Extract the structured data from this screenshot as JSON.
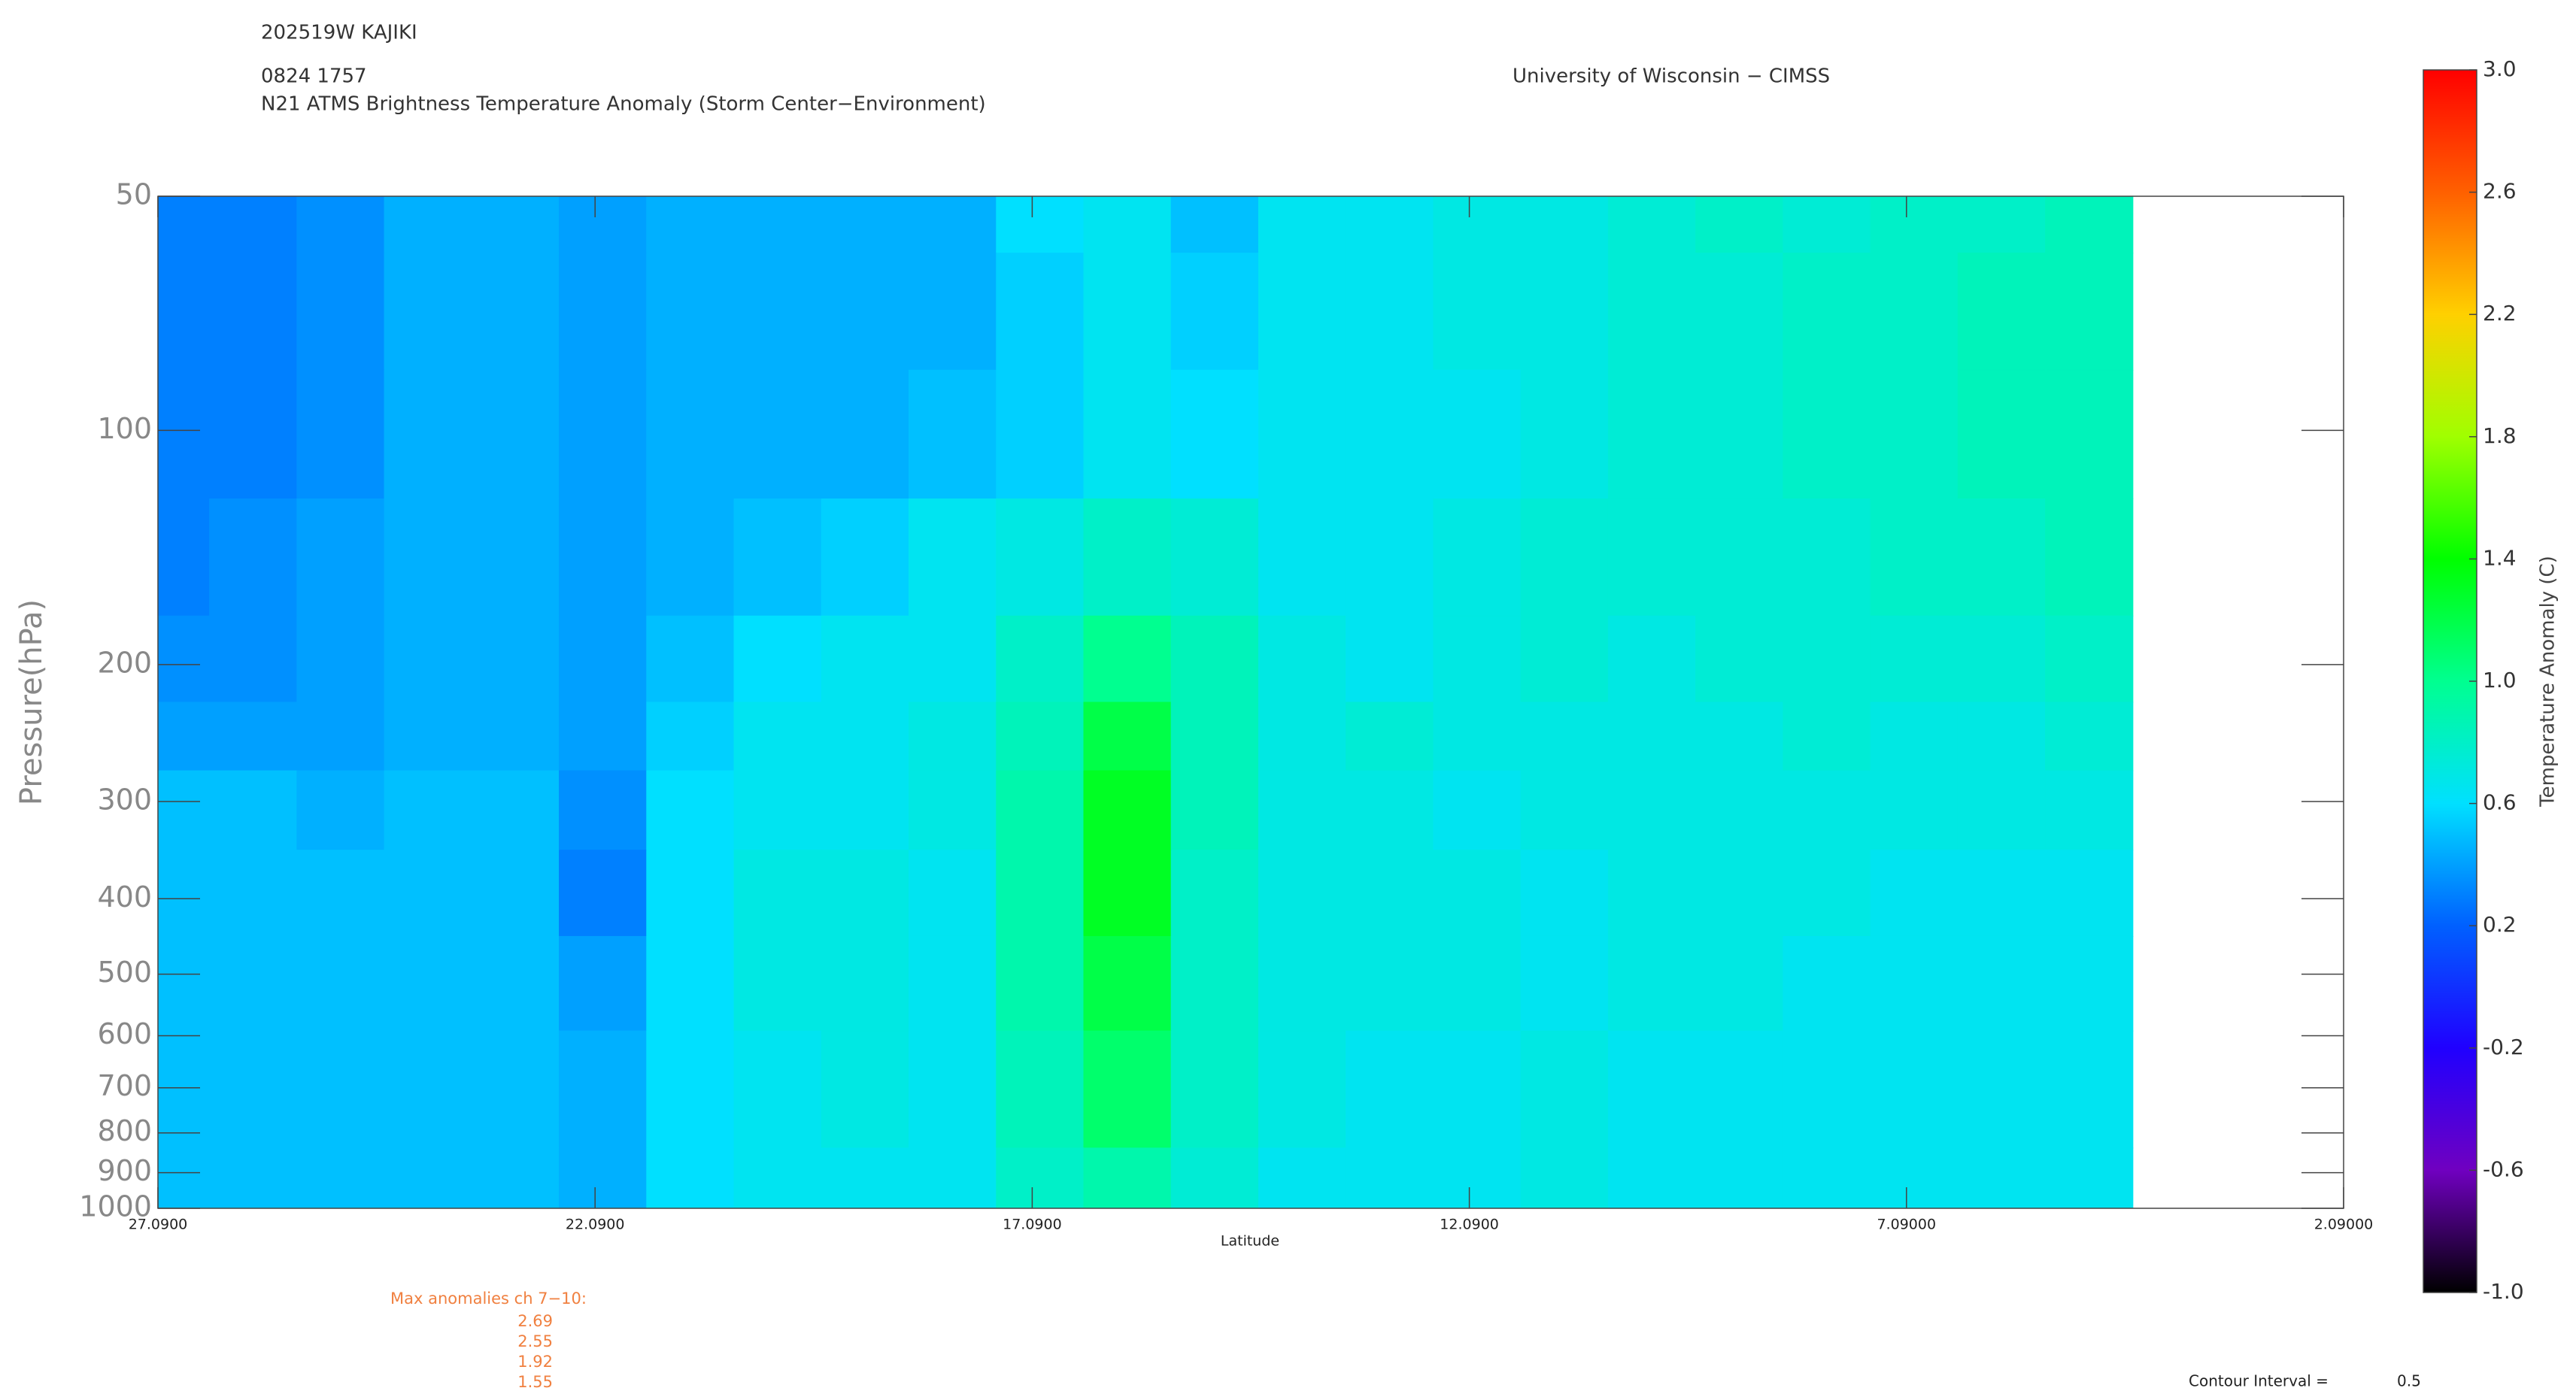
{
  "chart_data": {
    "type": "contour",
    "storm_id": "202519W KAJIKI",
    "datetime": "0824 1757",
    "title": "N21 ATMS Brightness Temperature Anomaly (Storm Center−Environment)",
    "credit": "University of Wisconsin − CIMSS",
    "xlabel": "Latitude",
    "ylabel": "Pressure(hPa)",
    "xlim": [
      27.09,
      2.09
    ],
    "xticks": [
      {
        "value": 27.09,
        "label": "27.0900"
      },
      {
        "value": 22.09,
        "label": "22.0900"
      },
      {
        "value": 17.09,
        "label": "17.0900"
      },
      {
        "value": 12.09,
        "label": "12.0900"
      },
      {
        "value": 7.09,
        "label": "7.09000"
      },
      {
        "value": 2.09,
        "label": "2.09000"
      }
    ],
    "ylim": [
      1000,
      50
    ],
    "yticks": [
      50,
      100,
      200,
      300,
      400,
      500,
      600,
      700,
      800,
      900,
      1000
    ],
    "log_y": true,
    "x": [
      27,
      26,
      25,
      24,
      23,
      22,
      21,
      20,
      19,
      18,
      17,
      16,
      15,
      14,
      13,
      12,
      11,
      10,
      9,
      8,
      7,
      6,
      5
    ],
    "y": [
      50,
      70,
      100,
      150,
      200,
      250,
      300,
      400,
      500,
      700,
      1000
    ],
    "z": [
      [
        0.3,
        0.3,
        0.35,
        0.45,
        0.45,
        0.4,
        0.45,
        0.45,
        0.45,
        0.45,
        0.6,
        0.65,
        0.5,
        0.65,
        0.65,
        0.7,
        0.7,
        0.75,
        0.8,
        0.75,
        0.8,
        0.8,
        0.85
      ],
      [
        0.3,
        0.3,
        0.35,
        0.45,
        0.45,
        0.4,
        0.45,
        0.45,
        0.45,
        0.45,
        0.55,
        0.65,
        0.55,
        0.65,
        0.65,
        0.7,
        0.7,
        0.75,
        0.75,
        0.8,
        0.8,
        0.85,
        0.85
      ],
      [
        0.3,
        0.3,
        0.35,
        0.45,
        0.45,
        0.4,
        0.45,
        0.45,
        0.45,
        0.5,
        0.55,
        0.65,
        0.6,
        0.65,
        0.65,
        0.65,
        0.7,
        0.75,
        0.75,
        0.8,
        0.8,
        0.85,
        0.85
      ],
      [
        0.3,
        0.35,
        0.4,
        0.45,
        0.45,
        0.4,
        0.45,
        0.5,
        0.55,
        0.65,
        0.7,
        0.8,
        0.75,
        0.65,
        0.65,
        0.7,
        0.75,
        0.75,
        0.75,
        0.75,
        0.8,
        0.8,
        0.85
      ],
      [
        0.35,
        0.35,
        0.4,
        0.45,
        0.45,
        0.4,
        0.5,
        0.6,
        0.65,
        0.65,
        0.8,
        1.0,
        0.85,
        0.7,
        0.65,
        0.7,
        0.75,
        0.7,
        0.75,
        0.75,
        0.75,
        0.75,
        0.8
      ],
      [
        0.4,
        0.4,
        0.4,
        0.45,
        0.45,
        0.4,
        0.55,
        0.65,
        0.65,
        0.7,
        0.85,
        1.2,
        0.85,
        0.7,
        0.75,
        0.7,
        0.7,
        0.7,
        0.7,
        0.75,
        0.7,
        0.7,
        0.75
      ],
      [
        0.5,
        0.5,
        0.45,
        0.5,
        0.5,
        0.35,
        0.6,
        0.65,
        0.65,
        0.7,
        0.9,
        1.3,
        0.85,
        0.7,
        0.7,
        0.65,
        0.7,
        0.7,
        0.7,
        0.7,
        0.7,
        0.7,
        0.7
      ],
      [
        0.5,
        0.5,
        0.5,
        0.5,
        0.5,
        0.3,
        0.6,
        0.7,
        0.7,
        0.65,
        0.9,
        1.3,
        0.8,
        0.7,
        0.7,
        0.7,
        0.65,
        0.7,
        0.7,
        0.7,
        0.65,
        0.65,
        0.65
      ],
      [
        0.5,
        0.5,
        0.5,
        0.5,
        0.5,
        0.4,
        0.6,
        0.7,
        0.7,
        0.65,
        0.9,
        1.2,
        0.8,
        0.7,
        0.7,
        0.7,
        0.65,
        0.7,
        0.7,
        0.65,
        0.65,
        0.65,
        0.65
      ],
      [
        0.5,
        0.5,
        0.5,
        0.5,
        0.5,
        0.45,
        0.6,
        0.65,
        0.7,
        0.65,
        0.85,
        1.1,
        0.8,
        0.7,
        0.65,
        0.65,
        0.7,
        0.65,
        0.65,
        0.65,
        0.65,
        0.65,
        0.65
      ],
      [
        0.5,
        0.5,
        0.5,
        0.5,
        0.5,
        0.45,
        0.6,
        0.65,
        0.65,
        0.65,
        0.8,
        0.9,
        0.75,
        0.65,
        0.65,
        0.65,
        0.7,
        0.65,
        0.65,
        0.65,
        0.65,
        0.65,
        0.65
      ]
    ],
    "colorbar": {
      "label": "Temperature Anomaly (C)",
      "lim": [
        -1,
        3
      ],
      "ticks": [
        {
          "value": -1,
          "label": "-1.0"
        },
        -0.6,
        -0.2,
        0.2,
        0.6,
        {
          "value": 1,
          "label": "1.0"
        },
        1.4,
        1.8,
        2.2,
        2.6,
        {
          "value": 3,
          "label": "3.0"
        }
      ],
      "colors": [
        "#000000",
        "#7000c0",
        "#2000ff",
        "#0060ff",
        "#00e0ff",
        "#00ff90",
        "#00ff00",
        "#a0ff00",
        "#ffd000",
        "#ff6000",
        "#ff0000"
      ]
    },
    "max_anomalies": {
      "label": "Max anomalies ch 7−10:",
      "values": [
        2.69,
        2.55,
        1.92,
        1.55
      ]
    },
    "contour_interval": {
      "label": "Contour Interval =",
      "value": 0.5
    }
  }
}
